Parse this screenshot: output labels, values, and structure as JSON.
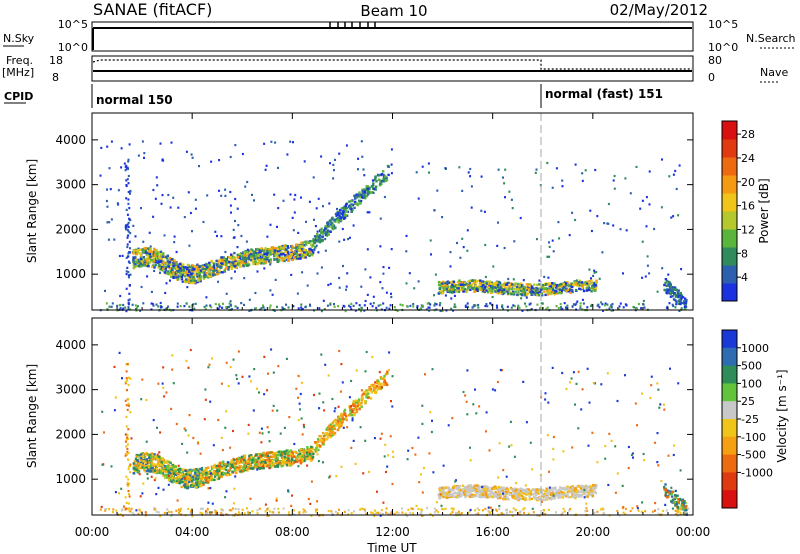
{
  "header": {
    "title": "SANAE (fitACF)",
    "beam": "Beam 10",
    "date": "02/May/2012"
  },
  "top_panels": {
    "nsky_label": "N.Sky",
    "nsearch_label": "N.Search",
    "count_ticks": [
      "10^5",
      "10^0"
    ],
    "freq_label_1": "Freq.",
    "freq_label_2": "[MHz]",
    "freq_ticks": [
      "18",
      "8"
    ],
    "nave_label": "Nave",
    "nave_ticks": [
      "80",
      "0"
    ],
    "cpid_label": "CPID",
    "cpid_segments": [
      {
        "label": "normal 150",
        "start_hour": 0
      },
      {
        "label": "normal (fast) 151",
        "start_hour": 18
      }
    ]
  },
  "chart_data": [
    {
      "type": "heatmap",
      "name": "power",
      "ylabel": "Slant Range [km]",
      "ylim": [
        200,
        4600
      ],
      "yticks": [
        1000,
        2000,
        3000,
        4000
      ],
      "xlim": [
        0,
        24
      ],
      "colorbar": {
        "label": "Power [dB]",
        "ticks": [
          "4",
          "8",
          "12",
          "16",
          "20",
          "24",
          "28"
        ],
        "colors": [
          "#1a32e0",
          "#2c5fae",
          "#2f8c5a",
          "#5ab53c",
          "#b5c82d",
          "#f0c418",
          "#f59a12",
          "#ee6a10",
          "#e23a10",
          "#d81010"
        ]
      }
    },
    {
      "type": "heatmap",
      "name": "velocity",
      "ylabel": "Slant Range [km]",
      "ylim": [
        200,
        4600
      ],
      "yticks": [
        1000,
        2000,
        3000,
        4000
      ],
      "xlim": [
        0,
        24
      ],
      "colorbar": {
        "label": "Velocity [m s⁻¹]",
        "ticks": [
          "1000",
          "500",
          "100",
          "25",
          "-25",
          "-100",
          "-500",
          "-1000"
        ],
        "colors": [
          "#1a3ad8",
          "#2d6cb0",
          "#2e8c58",
          "#62c43a",
          "#c8c8c8",
          "#f0c418",
          "#f5a012",
          "#ee6a10",
          "#e03a10",
          "#d81010"
        ]
      }
    }
  ],
  "x_axis": {
    "ticks": [
      "00:00",
      "04:00",
      "08:00",
      "12:00",
      "16:00",
      "20:00",
      "00:00"
    ],
    "label": "Time UT"
  }
}
